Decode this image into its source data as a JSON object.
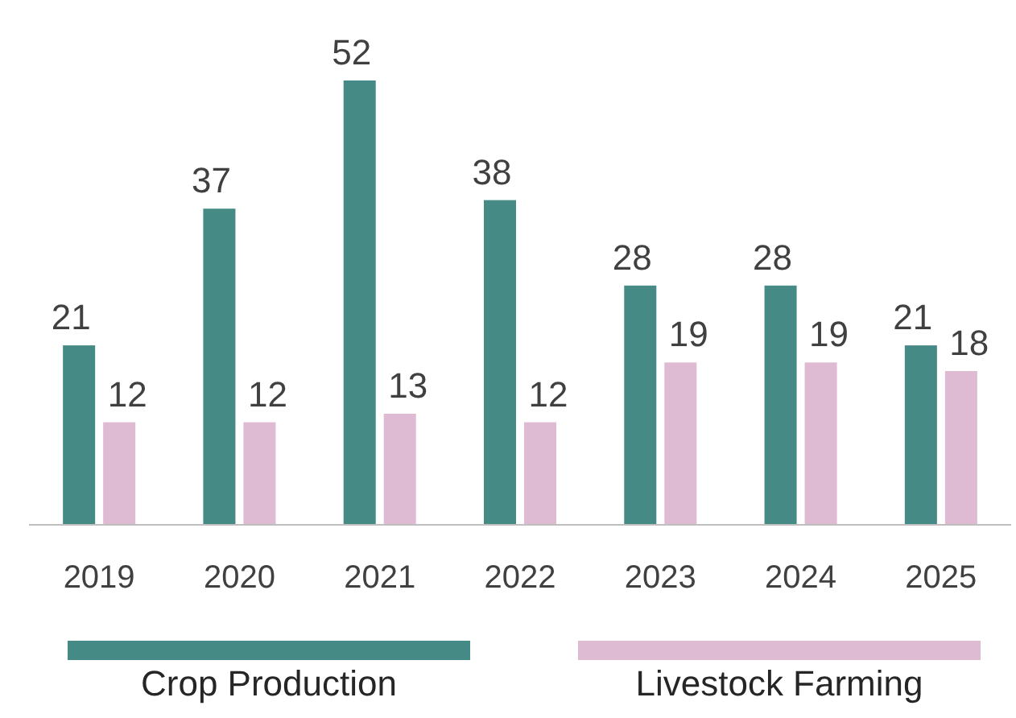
{
  "chart_data": {
    "type": "bar",
    "categories": [
      "2019",
      "2020",
      "2021",
      "2022",
      "2023",
      "2024",
      "2025"
    ],
    "series": [
      {
        "name": "Crop Production",
        "color": "#468a85",
        "values": [
          21,
          37,
          52,
          38,
          28,
          28,
          21
        ]
      },
      {
        "name": "Livestock Farming",
        "color": "#dfbad3",
        "values": [
          12,
          12,
          13,
          12,
          19,
          19,
          18
        ]
      }
    ],
    "data_labels": true,
    "legend": "bottom"
  }
}
